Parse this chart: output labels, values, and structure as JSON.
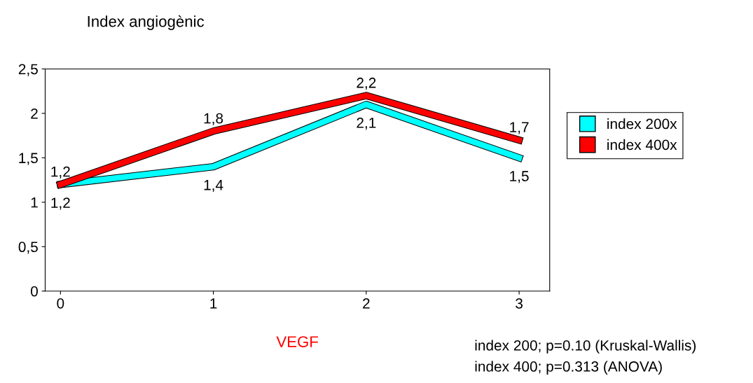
{
  "chart_data": {
    "type": "line",
    "ylabel": "Index angiogènic",
    "xlabel": "VEGF",
    "categories": [
      "0",
      "1",
      "2",
      "3"
    ],
    "series": [
      {
        "name": "index 200x",
        "color": "#00ffff",
        "values": [
          1.2,
          1.4,
          2.1,
          1.5
        ],
        "value_labels": [
          "1,2",
          "1,4",
          "2,1",
          "1,5"
        ]
      },
      {
        "name": "index 400x",
        "color": "#ff0000",
        "values": [
          1.2,
          1.8,
          2.2,
          1.7
        ],
        "value_labels": [
          "1,2",
          "1,8",
          "2,2",
          "1,7"
        ]
      }
    ],
    "ylim": [
      0,
      2.5
    ],
    "yticks": [
      0,
      {
        "value": 0.5,
        "label": "0,5"
      },
      1,
      {
        "value": 1.5,
        "label": "1,5"
      },
      2,
      {
        "value": 2.5,
        "label": "2,5"
      }
    ],
    "grid": false,
    "legend": "right",
    "marker": "none",
    "line_style": "solid",
    "annotations": [
      "index 200; p=0.10 (Kruskal-Wallis)",
      "index 400; p=0.313 (ANOVA)"
    ]
  }
}
